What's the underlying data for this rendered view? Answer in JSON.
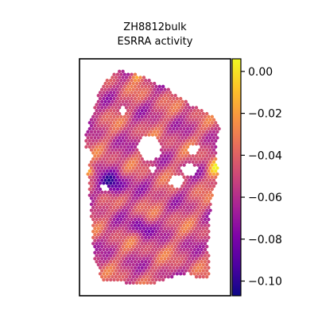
{
  "chart_data": {
    "type": "heatmap",
    "subtype": "spatial-hexbin",
    "title": "ZH8812bulk",
    "subtitle": "ESRRA activity",
    "xlabel": "",
    "ylabel": "",
    "colormap": "plasma",
    "colorbar": {
      "min": -0.107,
      "max": 0.006,
      "ticks": [
        0.0,
        -0.02,
        -0.04,
        -0.06,
        -0.08,
        -0.1
      ],
      "tick_labels": [
        "0.00",
        "−0.02",
        "−0.04",
        "−0.06",
        "−0.08",
        "−0.10"
      ]
    },
    "annotation": "approximate activity field over tissue section; low activity pocket on left-middle, holes in tissue near center",
    "regions": [
      {
        "name": "low-activity-left",
        "level": -0.098
      },
      {
        "name": "low-activity-lower-center",
        "level": -0.09
      },
      {
        "name": "high-activity-right-edge",
        "level": -0.005
      },
      {
        "name": "background-level",
        "level": -0.05
      }
    ]
  }
}
